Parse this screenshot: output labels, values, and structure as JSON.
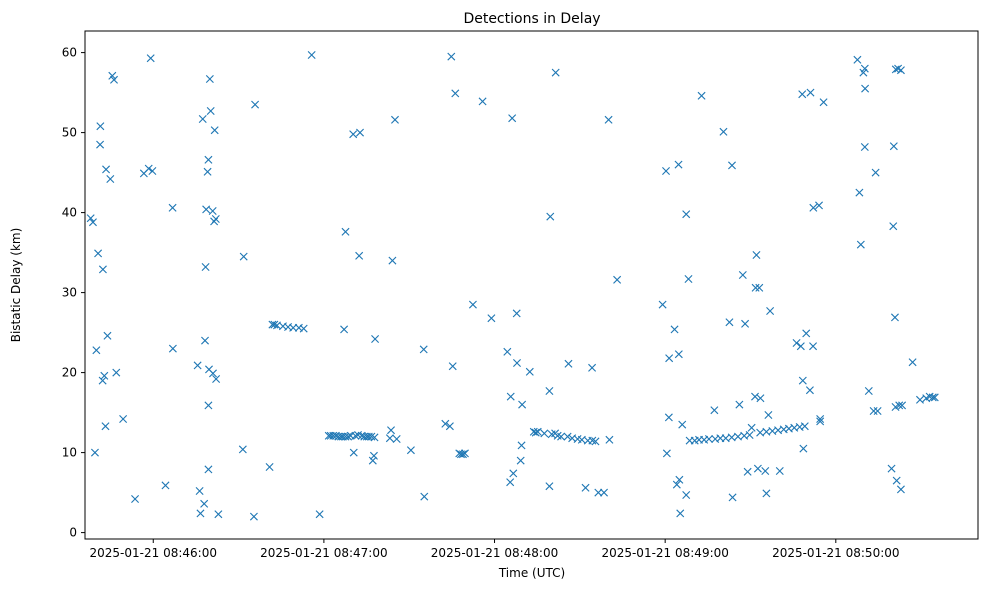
{
  "chart_data": {
    "type": "scatter",
    "title": "Detections in Delay",
    "xlabel": "Time (UTC)",
    "ylabel": "Bistatic Delay (km)",
    "marker": "x",
    "color": "#1f77b4",
    "grid": false,
    "legend": "none",
    "xlim": [
      "2025-01-21 08:45:36",
      "2025-01-21 08:50:50"
    ],
    "ylim": [
      -0.8,
      62.7
    ],
    "x_ticks": [
      "2025-01-21 08:46:00",
      "2025-01-21 08:47:00",
      "2025-01-21 08:48:00",
      "2025-01-21 08:49:00",
      "2025-01-21 08:50:00"
    ],
    "y_ticks": [
      0,
      10,
      20,
      30,
      40,
      50,
      60
    ],
    "points": [
      [
        "2025-01-21 08:45:38",
        39.3
      ],
      [
        "2025-01-21 08:45:38.8",
        38.8
      ],
      [
        "2025-01-21 08:45:39.5",
        10.0
      ],
      [
        "2025-01-21 08:45:40",
        22.8
      ],
      [
        "2025-01-21 08:45:40.6",
        34.9
      ],
      [
        "2025-01-21 08:45:41.3",
        48.5
      ],
      [
        "2025-01-21 08:45:41.4",
        50.8
      ],
      [
        "2025-01-21 08:45:42.2",
        19.0
      ],
      [
        "2025-01-21 08:45:42.3",
        32.9
      ],
      [
        "2025-01-21 08:45:42.8",
        19.6
      ],
      [
        "2025-01-21 08:45:43.2",
        13.3
      ],
      [
        "2025-01-21 08:45:43.4",
        45.4
      ],
      [
        "2025-01-21 08:45:43.9",
        24.6
      ],
      [
        "2025-01-21 08:45:44.9",
        44.2
      ],
      [
        "2025-01-21 08:45:45.6",
        57.1
      ],
      [
        "2025-01-21 08:45:46.2",
        56.6
      ],
      [
        "2025-01-21 08:45:47",
        20.0
      ],
      [
        "2025-01-21 08:45:49.4",
        14.2
      ],
      [
        "2025-01-21 08:45:53.6",
        4.2
      ],
      [
        "2025-01-21 08:45:56.7",
        44.9
      ],
      [
        "2025-01-21 08:45:58.4",
        45.5
      ],
      [
        "2025-01-21 08:45:59.1",
        59.3
      ],
      [
        "2025-01-21 08:45:59.7",
        45.2
      ],
      [
        "2025-01-21 08:46:04.3",
        5.9
      ],
      [
        "2025-01-21 08:46:06.8",
        40.6
      ],
      [
        "2025-01-21 08:46:06.9",
        23.0
      ],
      [
        "2025-01-21 08:46:15.6",
        20.9
      ],
      [
        "2025-01-21 08:46:16.3",
        5.2
      ],
      [
        "2025-01-21 08:46:16.6",
        2.4
      ],
      [
        "2025-01-21 08:46:17.4",
        51.7
      ],
      [
        "2025-01-21 08:46:17.9",
        3.6
      ],
      [
        "2025-01-21 08:46:18.2",
        24.0
      ],
      [
        "2025-01-21 08:46:18.4",
        33.2
      ],
      [
        "2025-01-21 08:46:18.6",
        40.4
      ],
      [
        "2025-01-21 08:46:19.1",
        45.1
      ],
      [
        "2025-01-21 08:46:19.4",
        46.6
      ],
      [
        "2025-01-21 08:46:19.4",
        7.9
      ],
      [
        "2025-01-21 08:46:19.4",
        15.9
      ],
      [
        "2025-01-21 08:46:19.6",
        20.4
      ],
      [
        "2025-01-21 08:46:19.9",
        56.7
      ],
      [
        "2025-01-21 08:46:20.2",
        52.7
      ],
      [
        "2025-01-21 08:46:20.9",
        40.2
      ],
      [
        "2025-01-21 08:46:21",
        19.9
      ],
      [
        "2025-01-21 08:46:21.4",
        38.9
      ],
      [
        "2025-01-21 08:46:21.6",
        50.3
      ],
      [
        "2025-01-21 08:46:22",
        39.2
      ],
      [
        "2025-01-21 08:46:22.1",
        19.2
      ],
      [
        "2025-01-21 08:46:22.9",
        2.3
      ],
      [
        "2025-01-21 08:46:31.5",
        10.4
      ],
      [
        "2025-01-21 08:46:31.8",
        34.5
      ],
      [
        "2025-01-21 08:46:35.4",
        2.0
      ],
      [
        "2025-01-21 08:46:35.8",
        53.5
      ],
      [
        "2025-01-21 08:46:40.9",
        8.2
      ],
      [
        "2025-01-21 08:46:41.9",
        26.0
      ],
      [
        "2025-01-21 08:46:42.6",
        26.0
      ],
      [
        "2025-01-21 08:46:43.5",
        25.9
      ],
      [
        "2025-01-21 08:46:45.6",
        25.8
      ],
      [
        "2025-01-21 08:46:47.4",
        25.7
      ],
      [
        "2025-01-21 08:46:49.2",
        25.6
      ],
      [
        "2025-01-21 08:46:51.2",
        25.6
      ],
      [
        "2025-01-21 08:46:52.9",
        25.5
      ],
      [
        "2025-01-21 08:46:55.7",
        59.7
      ],
      [
        "2025-01-21 08:46:58.5",
        2.3
      ],
      [
        "2025-01-21 08:47:01.7",
        12.1
      ],
      [
        "2025-01-21 08:47:02.4",
        12.1
      ],
      [
        "2025-01-21 08:47:03.3",
        12.1
      ],
      [
        "2025-01-21 08:47:04.2",
        12.1
      ],
      [
        "2025-01-21 08:47:05.1",
        12.0
      ],
      [
        "2025-01-21 08:47:06",
        12.0
      ],
      [
        "2025-01-21 08:47:06.7",
        12.0
      ],
      [
        "2025-01-21 08:47:07.1",
        25.4
      ],
      [
        "2025-01-21 08:47:07.6",
        12.0
      ],
      [
        "2025-01-21 08:47:07.6",
        37.6
      ],
      [
        "2025-01-21 08:47:08.5",
        12.0
      ],
      [
        "2025-01-21 08:47:09.4",
        12.1
      ],
      [
        "2025-01-21 08:47:10.3",
        49.8
      ],
      [
        "2025-01-21 08:47:10.5",
        10.0
      ],
      [
        "2025-01-21 08:47:11.1",
        12.1
      ],
      [
        "2025-01-21 08:47:12",
        12.2
      ],
      [
        "2025-01-21 08:47:12.4",
        34.6
      ],
      [
        "2025-01-21 08:47:12.7",
        50.0
      ],
      [
        "2025-01-21 08:47:13.3",
        12.1
      ],
      [
        "2025-01-21 08:47:14.2",
        12.0
      ],
      [
        "2025-01-21 08:47:15.1",
        12.0
      ],
      [
        "2025-01-21 08:47:15.8",
        12.0
      ],
      [
        "2025-01-21 08:47:16.7",
        12.0
      ],
      [
        "2025-01-21 08:47:17.2",
        9.0
      ],
      [
        "2025-01-21 08:47:17.6",
        9.6
      ],
      [
        "2025-01-21 08:47:17.8",
        11.9
      ],
      [
        "2025-01-21 08:47:18",
        24.2
      ],
      [
        "2025-01-21 08:47:23.2",
        11.8
      ],
      [
        "2025-01-21 08:47:23.6",
        12.8
      ],
      [
        "2025-01-21 08:47:24.1",
        34.0
      ],
      [
        "2025-01-21 08:47:25",
        51.6
      ],
      [
        "2025-01-21 08:47:25.6",
        11.7
      ],
      [
        "2025-01-21 08:47:30.6",
        10.3
      ],
      [
        "2025-01-21 08:47:35.3",
        4.5
      ],
      [
        "2025-01-21 08:47:35.1",
        22.9
      ],
      [
        "2025-01-21 08:47:42.7",
        13.6
      ],
      [
        "2025-01-21 08:47:44.3",
        13.3
      ],
      [
        "2025-01-21 08:47:44.8",
        59.5
      ],
      [
        "2025-01-21 08:47:45.3",
        20.8
      ],
      [
        "2025-01-21 08:47:46.2",
        54.9
      ],
      [
        "2025-01-21 08:47:47.6",
        9.9
      ],
      [
        "2025-01-21 08:47:48.2",
        9.8
      ],
      [
        "2025-01-21 08:47:48.9",
        9.8
      ],
      [
        "2025-01-21 08:47:49.6",
        9.9
      ],
      [
        "2025-01-21 08:47:52.4",
        28.5
      ],
      [
        "2025-01-21 08:47:55.8",
        53.9
      ],
      [
        "2025-01-21 08:47:58.9",
        26.8
      ],
      [
        "2025-01-21 08:48:04.5",
        22.6
      ],
      [
        "2025-01-21 08:48:05.5",
        6.3
      ],
      [
        "2025-01-21 08:48:05.7",
        17.0
      ],
      [
        "2025-01-21 08:48:06.2",
        51.8
      ],
      [
        "2025-01-21 08:48:06.6",
        7.4
      ],
      [
        "2025-01-21 08:48:07.8",
        27.4
      ],
      [
        "2025-01-21 08:48:07.9",
        21.2
      ],
      [
        "2025-01-21 08:48:09.2",
        9.0
      ],
      [
        "2025-01-21 08:48:09.7",
        16.0
      ],
      [
        "2025-01-21 08:48:09.5",
        10.9
      ],
      [
        "2025-01-21 08:48:12.4",
        20.1
      ],
      [
        "2025-01-21 08:48:13.8",
        12.6
      ],
      [
        "2025-01-21 08:48:14.5",
        12.5
      ],
      [
        "2025-01-21 08:48:15.2",
        12.6
      ],
      [
        "2025-01-21 08:48:17.5",
        12.4
      ],
      [
        "2025-01-21 08:48:19.3",
        17.7
      ],
      [
        "2025-01-21 08:48:19.3",
        5.8
      ],
      [
        "2025-01-21 08:48:19.6",
        39.5
      ],
      [
        "2025-01-21 08:48:20.1",
        12.3
      ],
      [
        "2025-01-21 08:48:21.3",
        12.4
      ],
      [
        "2025-01-21 08:48:21.5",
        57.5
      ],
      [
        "2025-01-21 08:48:22.2",
        12.1
      ],
      [
        "2025-01-21 08:48:23.4",
        12.0
      ],
      [
        "2025-01-21 08:48:25.7",
        12.0
      ],
      [
        "2025-01-21 08:48:26",
        21.1
      ],
      [
        "2025-01-21 08:48:27.3",
        11.8
      ],
      [
        "2025-01-21 08:48:29.2",
        11.7
      ],
      [
        "2025-01-21 08:48:30.7",
        11.6
      ],
      [
        "2025-01-21 08:48:32",
        5.6
      ],
      [
        "2025-01-21 08:48:32.8",
        11.5
      ],
      [
        "2025-01-21 08:48:34.4",
        11.5
      ],
      [
        "2025-01-21 08:48:34.3",
        20.6
      ],
      [
        "2025-01-21 08:48:35.5",
        11.4
      ],
      [
        "2025-01-21 08:48:36.5",
        5.0
      ],
      [
        "2025-01-21 08:48:38.5",
        5.0
      ],
      [
        "2025-01-21 08:48:40.1",
        51.6
      ],
      [
        "2025-01-21 08:48:40.4",
        11.6
      ],
      [
        "2025-01-21 08:48:43.1",
        31.6
      ],
      [
        "2025-01-21 08:48:59.1",
        28.5
      ],
      [
        "2025-01-21 08:49:00.3",
        45.2
      ],
      [
        "2025-01-21 08:49:00.6",
        9.9
      ],
      [
        "2025-01-21 08:49:01.3",
        14.4
      ],
      [
        "2025-01-21 08:49:01.4",
        21.8
      ],
      [
        "2025-01-21 08:49:03.3",
        25.4
      ],
      [
        "2025-01-21 08:49:04.1",
        6.0
      ],
      [
        "2025-01-21 08:49:04.7",
        46.0
      ],
      [
        "2025-01-21 08:49:04.8",
        22.3
      ],
      [
        "2025-01-21 08:49:05",
        6.6
      ],
      [
        "2025-01-21 08:49:05.3",
        2.4
      ],
      [
        "2025-01-21 08:49:06",
        13.5
      ],
      [
        "2025-01-21 08:49:07.4",
        39.8
      ],
      [
        "2025-01-21 08:49:07.4",
        4.7
      ],
      [
        "2025-01-21 08:49:08.2",
        31.7
      ],
      [
        "2025-01-21 08:49:08.6",
        11.5
      ],
      [
        "2025-01-21 08:49:10.4",
        11.5
      ],
      [
        "2025-01-21 08:49:11.9",
        11.6
      ],
      [
        "2025-01-21 08:49:12.8",
        54.6
      ],
      [
        "2025-01-21 08:49:13.7",
        11.6
      ],
      [
        "2025-01-21 08:49:15.4",
        11.7
      ],
      [
        "2025-01-21 08:49:17.3",
        15.3
      ],
      [
        "2025-01-21 08:49:17.6",
        11.7
      ],
      [
        "2025-01-21 08:49:19.4",
        11.8
      ],
      [
        "2025-01-21 08:49:20.5",
        50.1
      ],
      [
        "2025-01-21 08:49:21.3",
        11.8
      ],
      [
        "2025-01-21 08:49:23.4",
        11.9
      ],
      [
        "2025-01-21 08:49:22.6",
        26.3
      ],
      [
        "2025-01-21 08:49:23.5",
        45.9
      ],
      [
        "2025-01-21 08:49:23.7",
        4.4
      ],
      [
        "2025-01-21 08:49:25.6",
        12.0
      ],
      [
        "2025-01-21 08:49:26.1",
        16.0
      ],
      [
        "2025-01-21 08:49:27.3",
        32.2
      ],
      [
        "2025-01-21 08:49:27.8",
        12.1
      ],
      [
        "2025-01-21 08:49:28.1",
        26.1
      ],
      [
        "2025-01-21 08:49:29",
        7.6
      ],
      [
        "2025-01-21 08:49:29.7",
        12.2
      ],
      [
        "2025-01-21 08:49:30.4",
        13.1
      ],
      [
        "2025-01-21 08:49:31.6",
        17.0
      ],
      [
        "2025-01-21 08:49:31.8",
        30.6
      ],
      [
        "2025-01-21 08:49:32.1",
        34.7
      ],
      [
        "2025-01-21 08:49:32.6",
        8.0
      ],
      [
        "2025-01-21 08:49:33.1",
        30.6
      ],
      [
        "2025-01-21 08:49:33.4",
        12.5
      ],
      [
        "2025-01-21 08:49:33.5",
        16.8
      ],
      [
        "2025-01-21 08:49:35.2",
        7.7
      ],
      [
        "2025-01-21 08:49:35.6",
        12.6
      ],
      [
        "2025-01-21 08:49:35.6",
        4.9
      ],
      [
        "2025-01-21 08:49:36.3",
        14.7
      ],
      [
        "2025-01-21 08:49:36.9",
        27.7
      ],
      [
        "2025-01-21 08:49:37.7",
        12.7
      ],
      [
        "2025-01-21 08:49:39.7",
        12.8
      ],
      [
        "2025-01-21 08:49:40.3",
        7.7
      ],
      [
        "2025-01-21 08:49:41.7",
        12.9
      ],
      [
        "2025-01-21 08:49:43.5",
        13.0
      ],
      [
        "2025-01-21 08:49:45.4",
        13.1
      ],
      [
        "2025-01-21 08:49:46.2",
        23.7
      ],
      [
        "2025-01-21 08:49:47.3",
        13.2
      ],
      [
        "2025-01-21 08:49:47.7",
        23.3
      ],
      [
        "2025-01-21 08:49:48.2",
        54.8
      ],
      [
        "2025-01-21 08:49:48.4",
        19.0
      ],
      [
        "2025-01-21 08:49:48.6",
        10.5
      ],
      [
        "2025-01-21 08:49:49.1",
        13.3
      ],
      [
        "2025-01-21 08:49:49.6",
        24.9
      ],
      [
        "2025-01-21 08:49:50.9",
        17.8
      ],
      [
        "2025-01-21 08:49:51.1",
        55.0
      ],
      [
        "2025-01-21 08:49:52",
        23.3
      ],
      [
        "2025-01-21 08:49:52.1",
        40.6
      ],
      [
        "2025-01-21 08:49:54.1",
        40.9
      ],
      [
        "2025-01-21 08:49:54.5",
        13.9
      ],
      [
        "2025-01-21 08:49:54.5",
        14.2
      ],
      [
        "2025-01-21 08:49:55.7",
        53.8
      ],
      [
        "2025-01-21 08:50:07.6",
        59.1
      ],
      [
        "2025-01-21 08:50:08.3",
        42.5
      ],
      [
        "2025-01-21 08:50:08.8",
        36.0
      ],
      [
        "2025-01-21 08:50:09.7",
        57.5
      ],
      [
        "2025-01-21 08:50:10.2",
        58.0
      ],
      [
        "2025-01-21 08:50:10.2",
        48.2
      ],
      [
        "2025-01-21 08:50:10.3",
        55.5
      ],
      [
        "2025-01-21 08:50:11.6",
        17.7
      ],
      [
        "2025-01-21 08:50:13.3",
        15.2
      ],
      [
        "2025-01-21 08:50:14",
        45.0
      ],
      [
        "2025-01-21 08:50:14.7",
        15.2
      ],
      [
        "2025-01-21 08:50:19.6",
        8.0
      ],
      [
        "2025-01-21 08:50:20.2",
        38.3
      ],
      [
        "2025-01-21 08:50:20.4",
        48.3
      ],
      [
        "2025-01-21 08:50:21.1",
        57.9
      ],
      [
        "2025-01-21 08:50:20.8",
        26.9
      ],
      [
        "2025-01-21 08:50:21",
        15.7
      ],
      [
        "2025-01-21 08:50:21.4",
        6.5
      ],
      [
        "2025-01-21 08:50:21.9",
        58.0
      ],
      [
        "2025-01-21 08:50:22.3",
        15.9
      ],
      [
        "2025-01-21 08:50:22.9",
        57.8
      ],
      [
        "2025-01-21 08:50:22.9",
        5.4
      ],
      [
        "2025-01-21 08:50:23.3",
        15.9
      ],
      [
        "2025-01-21 08:50:27",
        21.3
      ],
      [
        "2025-01-21 08:50:29.6",
        16.6
      ],
      [
        "2025-01-21 08:50:31.8",
        16.8
      ],
      [
        "2025-01-21 08:50:33",
        17.0
      ],
      [
        "2025-01-21 08:50:34.1",
        16.9
      ],
      [
        "2025-01-21 08:50:34.8",
        16.9
      ]
    ]
  }
}
